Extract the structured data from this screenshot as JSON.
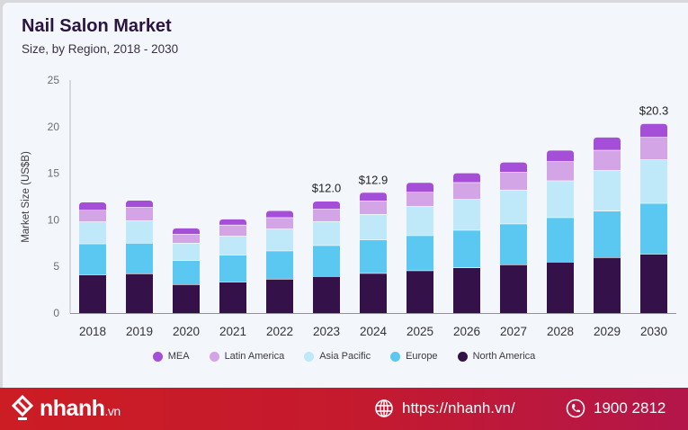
{
  "chart_data": {
    "type": "bar",
    "stacked": true,
    "title": "Nail Salon Market",
    "subtitle": "Size, by Region, 2018 - 2030",
    "xlabel": "",
    "ylabel": "Market Size (US$B)",
    "ylim": [
      0,
      25
    ],
    "yticks": [
      "0",
      "5",
      "10",
      "15",
      "20",
      "25"
    ],
    "grid": false,
    "legend_position": "bottom",
    "categories": [
      "2018",
      "2019",
      "2020",
      "2021",
      "2022",
      "2023",
      "2024",
      "2025",
      "2026",
      "2027",
      "2028",
      "2029",
      "2030"
    ],
    "series": [
      {
        "name": "North America",
        "color": "#35114a",
        "values": [
          4.12,
          4.25,
          3.09,
          3.35,
          3.67,
          3.96,
          4.28,
          4.57,
          4.89,
          5.21,
          5.5,
          5.98,
          6.34
        ]
      },
      {
        "name": "Europe",
        "color": "#5bc8f2",
        "values": [
          3.34,
          3.28,
          2.58,
          2.9,
          3.02,
          3.31,
          3.61,
          3.76,
          4.02,
          4.38,
          4.76,
          4.99,
          5.46
        ]
      },
      {
        "name": "Asia Pacific",
        "color": "#bfe8f9",
        "values": [
          2.36,
          2.41,
          1.86,
          2.03,
          2.36,
          2.58,
          2.73,
          3.15,
          3.32,
          3.64,
          3.96,
          4.37,
          4.67
        ]
      },
      {
        "name": "Latin America",
        "color": "#d4a5e6",
        "values": [
          1.25,
          1.42,
          0.97,
          1.19,
          1.22,
          1.32,
          1.45,
          1.52,
          1.8,
          1.9,
          2.06,
          2.15,
          2.41
        ]
      },
      {
        "name": "MEA",
        "color": "#a54ed8",
        "values": [
          0.8,
          0.7,
          0.58,
          0.58,
          0.68,
          0.8,
          0.84,
          0.97,
          0.97,
          1.03,
          1.16,
          1.35,
          1.41
        ]
      }
    ],
    "annotations": [
      {
        "category": "2023",
        "text": "$12.0",
        "value": 12.0
      },
      {
        "category": "2024",
        "text": "$12.9",
        "value": 12.9
      },
      {
        "category": "2030",
        "text": "$20.3",
        "value": 20.3
      }
    ],
    "legend": [
      "MEA",
      "Latin America",
      "Asia Pacific",
      "Europe",
      "North America"
    ]
  },
  "footer": {
    "brand": "nhanh",
    "brand_tld": ".vn",
    "website_icon": "globe-icon",
    "website": "https://nhanh.vn/",
    "phone_icon": "phone-icon",
    "phone": "1900 2812"
  }
}
